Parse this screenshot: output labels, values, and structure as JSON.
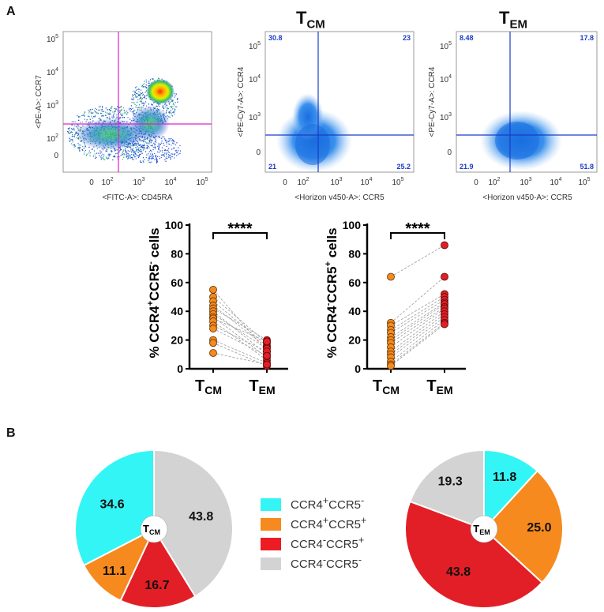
{
  "panels": {
    "a": "A",
    "b": "B"
  },
  "flow": {
    "dot": {
      "ylabel": "<PE-A>: CCR7",
      "xlabel": "<FITC-A>: CD45RA",
      "x_ticks": [
        "0",
        "10",
        "10",
        "10",
        "10"
      ],
      "x_exps": [
        "",
        "2",
        "3",
        "4",
        "5"
      ],
      "y_ticks": [
        "0",
        "10",
        "10",
        "10",
        "10"
      ],
      "y_exps": [
        "",
        "2",
        "3",
        "4",
        "5"
      ]
    },
    "tcm": {
      "title": "T",
      "title_sub": "CM",
      "ylabel": "<PE-Cy7-A>: CCR4",
      "xlabel": "<Horizon v450-A>: CCR5",
      "q_tl": "30.8",
      "q_tr": "23",
      "q_bl": "21",
      "q_br": "25.2"
    },
    "tem": {
      "title": "T",
      "title_sub": "EM",
      "ylabel": "<PE-Cy7-A>: CCR4",
      "xlabel": "<Horizon v450-A>: CCR5",
      "q_tl": "8.48",
      "q_tr": "17.8",
      "q_bl": "21.9",
      "q_br": "51.8"
    },
    "contour_x_ticks": [
      "0",
      "10",
      "10",
      "10",
      "10"
    ],
    "contour_x_exps": [
      "",
      "2",
      "3",
      "4",
      "5"
    ],
    "contour_y_ticks": [
      "0",
      "10",
      "10",
      "10"
    ],
    "contour_y_exps": [
      "",
      "3",
      "4",
      "5"
    ]
  },
  "chart_data": [
    {
      "type": "scatter",
      "title": "",
      "ylabel": "% CCR4+CCR5- cells",
      "ylabel_parts": [
        "% CCR4",
        "+",
        "CCR5",
        "-",
        " cells"
      ],
      "categories": [
        "TCM",
        "TEM"
      ],
      "ylim": [
        0,
        100
      ],
      "yticks": [
        0,
        20,
        40,
        60,
        80,
        100
      ],
      "significance": "****",
      "pairs": [
        [
          55,
          12
        ],
        [
          50,
          18
        ],
        [
          47,
          16
        ],
        [
          44,
          15
        ],
        [
          42,
          20
        ],
        [
          40,
          10
        ],
        [
          38,
          14
        ],
        [
          36,
          8
        ],
        [
          35,
          19
        ],
        [
          33,
          6
        ],
        [
          30,
          12
        ],
        [
          28,
          9
        ],
        [
          20,
          4
        ],
        [
          18,
          2
        ],
        [
          11,
          3
        ]
      ]
    },
    {
      "type": "scatter",
      "title": "",
      "ylabel": "% CCR4-CCR5+ cells",
      "ylabel_parts": [
        "% CCR4",
        "-",
        "CCR5",
        "+",
        " cells"
      ],
      "categories": [
        "TCM",
        "TEM"
      ],
      "ylim": [
        0,
        100
      ],
      "yticks": [
        0,
        20,
        40,
        60,
        80,
        100
      ],
      "significance": "****",
      "pairs": [
        [
          64,
          86
        ],
        [
          32,
          64
        ],
        [
          30,
          52
        ],
        [
          27,
          50
        ],
        [
          25,
          48
        ],
        [
          22,
          46
        ],
        [
          20,
          45
        ],
        [
          18,
          43
        ],
        [
          15,
          42
        ],
        [
          12,
          40
        ],
        [
          10,
          38
        ],
        [
          8,
          36
        ],
        [
          5,
          34
        ],
        [
          3,
          32
        ],
        [
          2,
          31
        ]
      ]
    },
    {
      "type": "pie",
      "center_label": "T",
      "center_sub": "CM",
      "slices": [
        {
          "name": "CCR4-CCR5-",
          "value": 43.8
        },
        {
          "name": "CCR4-CCR5+",
          "value": 16.7
        },
        {
          "name": "CCR4+CCR5+",
          "value": 11.1
        },
        {
          "name": "CCR4+CCR5-",
          "value": 34.6
        }
      ],
      "labels": [
        "43.8",
        "16.7",
        "11.1",
        "34.6"
      ]
    },
    {
      "type": "pie",
      "center_label": "T",
      "center_sub": "EM",
      "slices": [
        {
          "name": "CCR4+CCR5-",
          "value": 11.8
        },
        {
          "name": "CCR4+CCR5+",
          "value": 25.0
        },
        {
          "name": "CCR4-CCR5+",
          "value": 43.8
        },
        {
          "name": "CCR4-CCR5-",
          "value": 19.3
        }
      ],
      "labels": [
        "11.8",
        "25.0",
        "43.8",
        "19.3"
      ]
    }
  ],
  "x_category_labels": [
    {
      "main": "T",
      "sub": "CM"
    },
    {
      "main": "T",
      "sub": "EM"
    }
  ],
  "legend": [
    {
      "main": "CCR4",
      "s1": "+",
      "mid": "CCR5",
      "s2": "-",
      "color": "#33f5f5"
    },
    {
      "main": "CCR4",
      "s1": "+",
      "mid": "CCR5",
      "s2": "+",
      "color": "#f68a1e"
    },
    {
      "main": "CCR4",
      "s1": "-",
      "mid": "CCR5",
      "s2": "+",
      "color": "#ed1c24"
    },
    {
      "main": "CCR4",
      "s1": "-",
      "mid": "CCR5",
      "s2": "-",
      "color": "#d3d3d3"
    }
  ],
  "colors": {
    "orange": "#f68a1e",
    "red": "#e21f26",
    "cyan": "#33f5f5",
    "gray": "#d3d3d3",
    "magenta": "#e020d0",
    "blue": "#1a3cc8",
    "contour": "#2a7fe0"
  }
}
